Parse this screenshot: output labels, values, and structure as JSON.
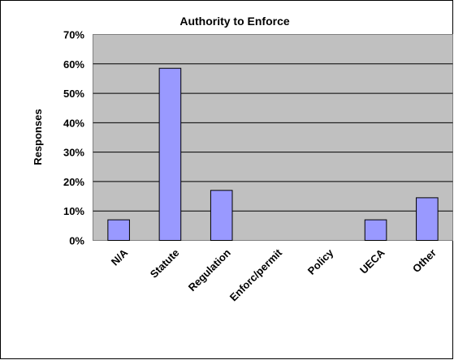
{
  "chart_data": {
    "type": "bar",
    "title": "Authority to Enforce",
    "ylabel": "Responses",
    "xlabel": "",
    "categories": [
      "N/A",
      "Statute",
      "Regulation",
      "Enforc/permit",
      "Policy",
      "UECA",
      "Other"
    ],
    "values": [
      7,
      58.5,
      17,
      0,
      0,
      7,
      14.5
    ],
    "ylim": [
      0,
      70
    ],
    "yticks": [
      0,
      10,
      20,
      30,
      40,
      50,
      60,
      70
    ],
    "ytick_labels": [
      "0%",
      "10%",
      "20%",
      "30%",
      "40%",
      "50%",
      "60%",
      "70%"
    ],
    "grid": true,
    "legend": "none",
    "colors": {
      "bar": "#9999ff",
      "plot_background": "#c0c0c0",
      "gridline": "#000000"
    }
  }
}
